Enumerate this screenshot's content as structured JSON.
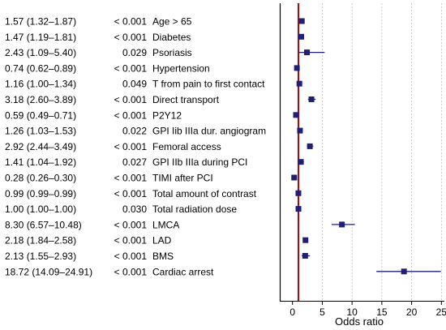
{
  "chart_data": {
    "type": "forest",
    "xlabel": "Odds ratio",
    "xlim": [
      -2,
      25.5
    ],
    "x_ticks": [
      "0",
      "5",
      "10",
      "15",
      "20",
      "25"
    ],
    "x_tick_values": [
      0,
      5,
      10,
      15,
      20,
      25
    ],
    "reference_line": 1,
    "grid": "vertical dashed",
    "colors": {
      "point": "#1f1f7a",
      "reference": "#8b1a1a",
      "grid": "#bdbdbd"
    },
    "rows": [
      {
        "ci_text": "1.57 (1.32–1.87)",
        "p": "< 0.001",
        "label": "Age > 65",
        "or": 1.57,
        "lo": 1.32,
        "hi": 1.87
      },
      {
        "ci_text": "1.47 (1.19–1.81)",
        "p": "< 0.001",
        "label": "Diabetes",
        "or": 1.47,
        "lo": 1.19,
        "hi": 1.81
      },
      {
        "ci_text": "2.43 (1.09–5.40)",
        "p": "0.029",
        "label": "Psoriasis",
        "or": 2.43,
        "lo": 1.09,
        "hi": 5.4
      },
      {
        "ci_text": "0.74 (0.62–0.89)",
        "p": "< 0.001",
        "label": "Hypertension",
        "or": 0.74,
        "lo": 0.62,
        "hi": 0.89
      },
      {
        "ci_text": "1.16 (1.00–1.34)",
        "p": "0.049",
        "label": "T from pain to first contact",
        "or": 1.16,
        "lo": 1.0,
        "hi": 1.34
      },
      {
        "ci_text": "3.18 (2.60–3.89)",
        "p": "< 0.001",
        "label": "Direct transport",
        "or": 3.18,
        "lo": 2.6,
        "hi": 3.89
      },
      {
        "ci_text": "0.59 (0.49–0.71)",
        "p": "< 0.001",
        "label": "P2Y12",
        "or": 0.59,
        "lo": 0.49,
        "hi": 0.71
      },
      {
        "ci_text": "1.26 (1.03–1.53)",
        "p": "0.022",
        "label": "GPI Iib IIIa dur. angiogram",
        "or": 1.26,
        "lo": 1.03,
        "hi": 1.53
      },
      {
        "ci_text": "2.92 (2.44–3.49)",
        "p": "< 0.001",
        "label": "Femoral access",
        "or": 2.92,
        "lo": 2.44,
        "hi": 3.49
      },
      {
        "ci_text": "1.41 (1.04–1.92)",
        "p": "0.027",
        "label": "GPI IIb IIIa during PCI",
        "or": 1.41,
        "lo": 1.04,
        "hi": 1.92
      },
      {
        "ci_text": "0.28 (0.26–0.30)",
        "p": "< 0.001",
        "label": "TIMI after PCI",
        "or": 0.28,
        "lo": 0.26,
        "hi": 0.3
      },
      {
        "ci_text": "0.99 (0.99–0.99)",
        "p": "< 0.001",
        "label": "Total amount of contrast",
        "or": 0.99,
        "lo": 0.99,
        "hi": 0.99
      },
      {
        "ci_text": "1.00 (1.00–1.00)",
        "p": "0.030",
        "label": "Total radiation dose",
        "or": 1.0,
        "lo": 1.0,
        "hi": 1.0
      },
      {
        "ci_text": "8.30 (6.57–10.48)",
        "p": "< 0.001",
        "label": "LMCA",
        "or": 8.3,
        "lo": 6.57,
        "hi": 10.48
      },
      {
        "ci_text": "2.18 (1.84–2.58)",
        "p": "< 0.001",
        "label": "LAD",
        "or": 2.18,
        "lo": 1.84,
        "hi": 2.58
      },
      {
        "ci_text": "2.13 (1.55–2.93)",
        "p": "< 0.001",
        "label": "BMS",
        "or": 2.13,
        "lo": 1.55,
        "hi": 2.93
      },
      {
        "ci_text": "18.72 (14.09–24.91)",
        "p": "< 0.001",
        "label": "Cardiac arrest",
        "or": 18.72,
        "lo": 14.09,
        "hi": 24.91
      }
    ]
  }
}
